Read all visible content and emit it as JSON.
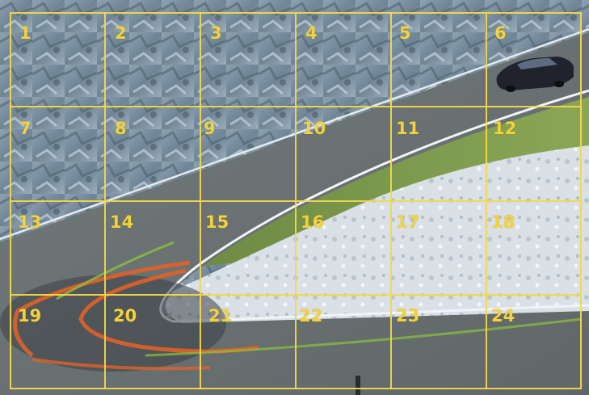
{
  "grid": {
    "cells": [
      {
        "label": "1"
      },
      {
        "label": "2"
      },
      {
        "label": "3"
      },
      {
        "label": "4"
      },
      {
        "label": "5"
      },
      {
        "label": "6"
      },
      {
        "label": "7"
      },
      {
        "label": "8"
      },
      {
        "label": "9"
      },
      {
        "label": "10"
      },
      {
        "label": "11"
      },
      {
        "label": "12"
      },
      {
        "label": "13"
      },
      {
        "label": "14"
      },
      {
        "label": "15"
      },
      {
        "label": "16"
      },
      {
        "label": "17"
      },
      {
        "label": "18"
      },
      {
        "label": "19"
      },
      {
        "label": "20"
      },
      {
        "label": "21"
      },
      {
        "label": "22"
      },
      {
        "label": "23"
      },
      {
        "label": "24"
      }
    ],
    "line_color": "#f2d84a",
    "label_color": "#f3d23c"
  },
  "scene": {
    "description_colors": {
      "rock": "#7f93a4",
      "road": "#6c7475",
      "grass": "#7e9a4c",
      "snow": "#d8dee4",
      "car": "#20222e",
      "skid_marks": "#e0622a"
    }
  }
}
